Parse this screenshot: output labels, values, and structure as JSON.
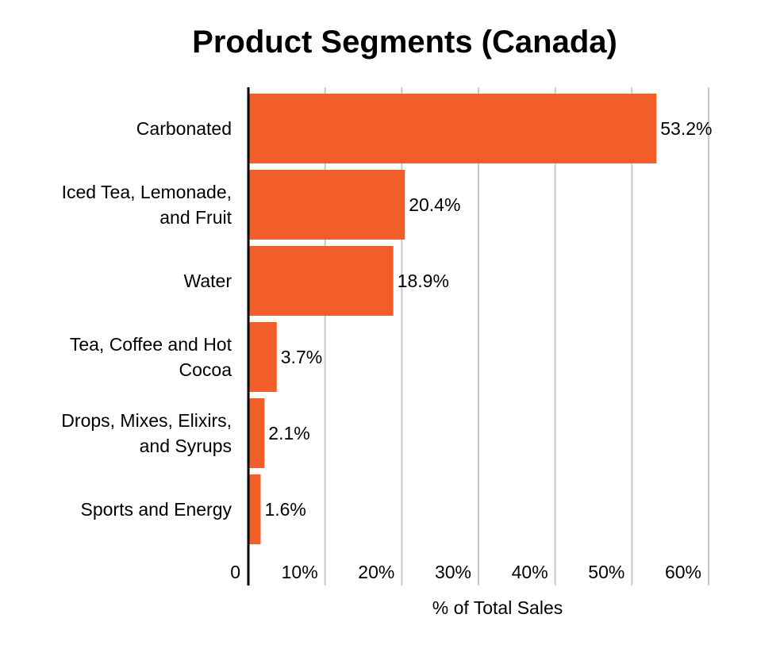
{
  "chart_data": {
    "type": "bar",
    "orientation": "horizontal",
    "title": "Product Segments (Canada)",
    "xlabel": "% of Total Sales",
    "ylabel": "",
    "categories": [
      [
        "Carbonated"
      ],
      [
        "Iced Tea, Lemonade,",
        "and Fruit"
      ],
      [
        "Water"
      ],
      [
        "Tea, Coffee and Hot",
        "Cocoa"
      ],
      [
        "Drops, Mixes, Elixirs,",
        "and Syrups"
      ],
      [
        "Sports and Energy"
      ]
    ],
    "values": [
      53.2,
      20.4,
      18.9,
      3.7,
      2.1,
      1.6
    ],
    "value_labels": [
      "53.2%",
      "20.4%",
      "18.9%",
      "3.7%",
      "2.1%",
      "1.6%"
    ],
    "x_ticks": [
      0,
      10,
      20,
      30,
      40,
      50,
      60
    ],
    "x_tick_labels": [
      "0",
      "10%",
      "20%",
      "30%",
      "40%",
      "50%",
      "60%"
    ],
    "xlim": [
      0,
      60
    ],
    "grid": "vertical",
    "legend": "none",
    "bar_color": "#f25e27"
  }
}
